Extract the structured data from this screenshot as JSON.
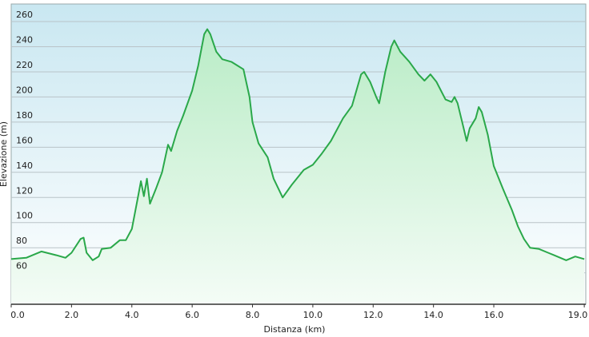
{
  "chart_data": {
    "type": "area",
    "x_label": "Distanza  (km)",
    "y_label": "Elevazione (m)",
    "x": [
      0,
      0.5,
      1.0,
      1.5,
      1.8,
      2.0,
      2.3,
      2.4,
      2.5,
      2.7,
      2.9,
      3.0,
      3.3,
      3.6,
      3.8,
      4.0,
      4.2,
      4.3,
      4.4,
      4.5,
      4.6,
      4.8,
      5.0,
      5.2,
      5.3,
      5.5,
      5.7,
      6.0,
      6.2,
      6.4,
      6.5,
      6.6,
      6.8,
      7.0,
      7.3,
      7.5,
      7.7,
      7.9,
      8.0,
      8.2,
      8.5,
      8.7,
      9.0,
      9.3,
      9.7,
      10.0,
      10.3,
      10.6,
      11.0,
      11.3,
      11.6,
      11.7,
      11.9,
      12.1,
      12.2,
      12.4,
      12.6,
      12.7,
      12.9,
      13.2,
      13.5,
      13.7,
      13.9,
      14.1,
      14.4,
      14.6,
      14.7,
      14.8,
      15.0,
      15.1,
      15.2,
      15.4,
      15.5,
      15.6,
      15.8,
      16.0,
      16.3,
      16.6,
      16.8,
      17.0,
      17.2,
      17.5,
      17.8,
      18.0,
      18.4,
      18.7,
      19.0
    ],
    "series": [
      {
        "color": "#2aa84a",
        "values": [
          71,
          72,
          77,
          74,
          72,
          76,
          87,
          88,
          76,
          70,
          73,
          79,
          80,
          86,
          86,
          95,
          120,
          133,
          121,
          135,
          115,
          127,
          140,
          162,
          157,
          173,
          185,
          205,
          225,
          250,
          254,
          250,
          236,
          230,
          228,
          225,
          222,
          200,
          180,
          163,
          152,
          135,
          120,
          130,
          142,
          146,
          155,
          165,
          183,
          193,
          218,
          220,
          212,
          200,
          195,
          220,
          240,
          245,
          236,
          228,
          218,
          213,
          218,
          212,
          198,
          196,
          200,
          195,
          175,
          165,
          175,
          183,
          192,
          188,
          170,
          145,
          127,
          110,
          97,
          87,
          80,
          79,
          76,
          74,
          70,
          73,
          71
        ]
      }
    ],
    "xlim": [
      0,
      19.05
    ],
    "ylim": [
      35,
      274
    ],
    "xticks": [
      {
        "value": 0,
        "label": "0.0"
      },
      {
        "value": 2,
        "label": "2.0"
      },
      {
        "value": 4,
        "label": "4.0"
      },
      {
        "value": 6,
        "label": "6.0"
      },
      {
        "value": 8,
        "label": "8.0"
      },
      {
        "value": 10,
        "label": "10.0"
      },
      {
        "value": 12,
        "label": "12.0"
      },
      {
        "value": 14,
        "label": "14.0"
      },
      {
        "value": 16,
        "label": "16.0"
      },
      {
        "value": 19,
        "label": "19.0"
      }
    ],
    "yticks": [
      60,
      80,
      100,
      120,
      140,
      160,
      180,
      200,
      220,
      240,
      260
    ],
    "grid": true
  }
}
